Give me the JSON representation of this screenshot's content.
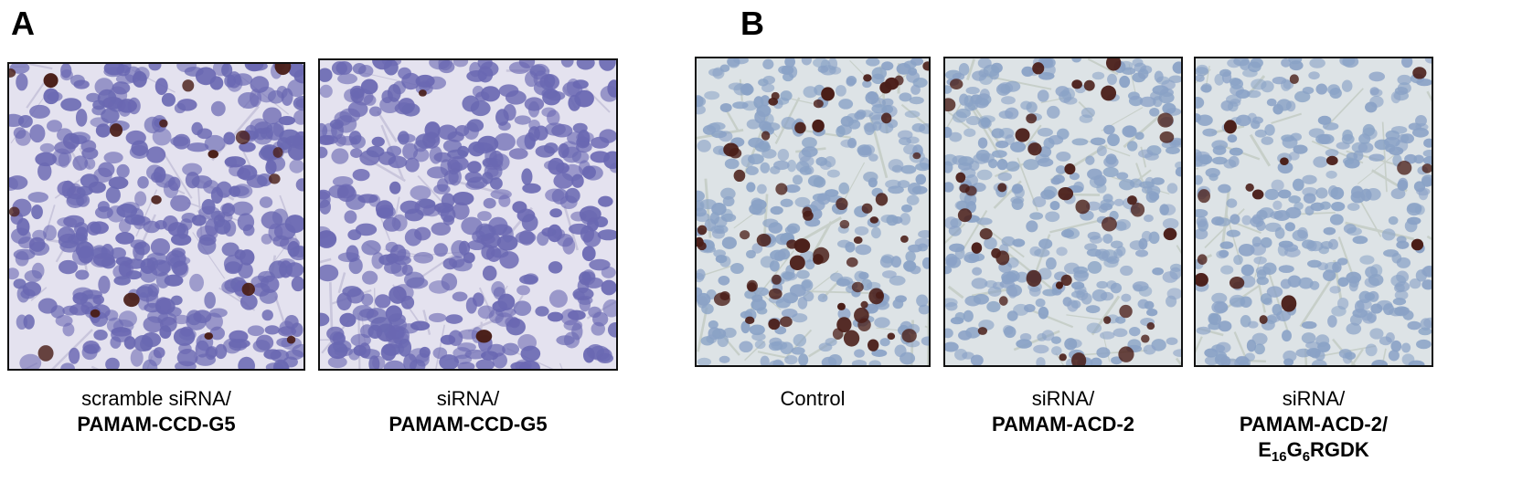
{
  "panels": {
    "A": {
      "letter": "A",
      "images": [
        {
          "caption_line1": "scramble siRNA/",
          "caption_line2": "PAMAM-CCD-G5"
        },
        {
          "caption_line1": "siRNA/",
          "caption_line2": "PAMAM-CCD-G5"
        }
      ]
    },
    "B": {
      "letter": "B",
      "images": [
        {
          "caption_line1": "Control"
        },
        {
          "caption_line1": "siRNA/",
          "caption_line2": "PAMAM-ACD-2"
        },
        {
          "caption_line1": "siRNA/",
          "caption_line2": "PAMAM-ACD-2/",
          "caption_line3": {
            "a": "E",
            "b": "16",
            "c": "G",
            "d": "6",
            "e": "RGDK"
          }
        }
      ]
    }
  },
  "colors": {
    "stain_a_background": "#e4e2ef",
    "stain_a_nuclei": "#6a68b2",
    "stain_b_background": "#dde3e6",
    "stain_b_nuclei": "#8aa2c6",
    "positive_nuclei": "#4a1e18"
  }
}
